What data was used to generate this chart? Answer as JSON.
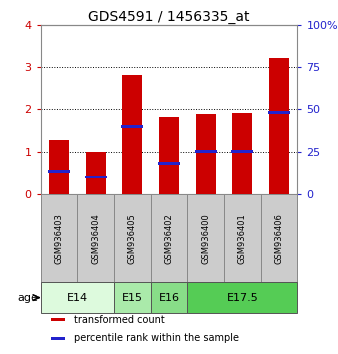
{
  "title": "GDS4591 / 1456335_at",
  "samples": [
    "GSM936403",
    "GSM936404",
    "GSM936405",
    "GSM936402",
    "GSM936400",
    "GSM936401",
    "GSM936406"
  ],
  "transformed_counts": [
    1.27,
    1.0,
    2.82,
    1.82,
    1.9,
    1.92,
    3.22
  ],
  "percentile_ranks": [
    13.0,
    10.0,
    40.0,
    18.0,
    25.0,
    25.0,
    48.0
  ],
  "ylim_left": [
    0,
    4
  ],
  "ylim_right": [
    0,
    100
  ],
  "yticks_left": [
    0,
    1,
    2,
    3,
    4
  ],
  "yticks_right": [
    0,
    25,
    50,
    75,
    100
  ],
  "yticklabels_right": [
    "0",
    "25",
    "50",
    "75",
    "100%"
  ],
  "bar_color": "#cc0000",
  "percentile_color": "#2222cc",
  "bar_width": 0.55,
  "grid_color": "#000000",
  "age_groups": [
    {
      "label": "E14",
      "samples": [
        "GSM936403",
        "GSM936404"
      ],
      "color": "#ddfadd"
    },
    {
      "label": "E15",
      "samples": [
        "GSM936405"
      ],
      "color": "#aaeaaa"
    },
    {
      "label": "E16",
      "samples": [
        "GSM936402"
      ],
      "color": "#88dd88"
    },
    {
      "label": "E17.5",
      "samples": [
        "GSM936400",
        "GSM936401",
        "GSM936406"
      ],
      "color": "#55cc55"
    }
  ],
  "age_label": "age",
  "legend_items": [
    {
      "label": "transformed count",
      "color": "#cc0000"
    },
    {
      "label": "percentile rank within the sample",
      "color": "#2222cc"
    }
  ],
  "background_color": "#ffffff",
  "panel_bg": "#cccccc",
  "tick_color_left": "#cc0000",
  "tick_color_right": "#2222cc"
}
